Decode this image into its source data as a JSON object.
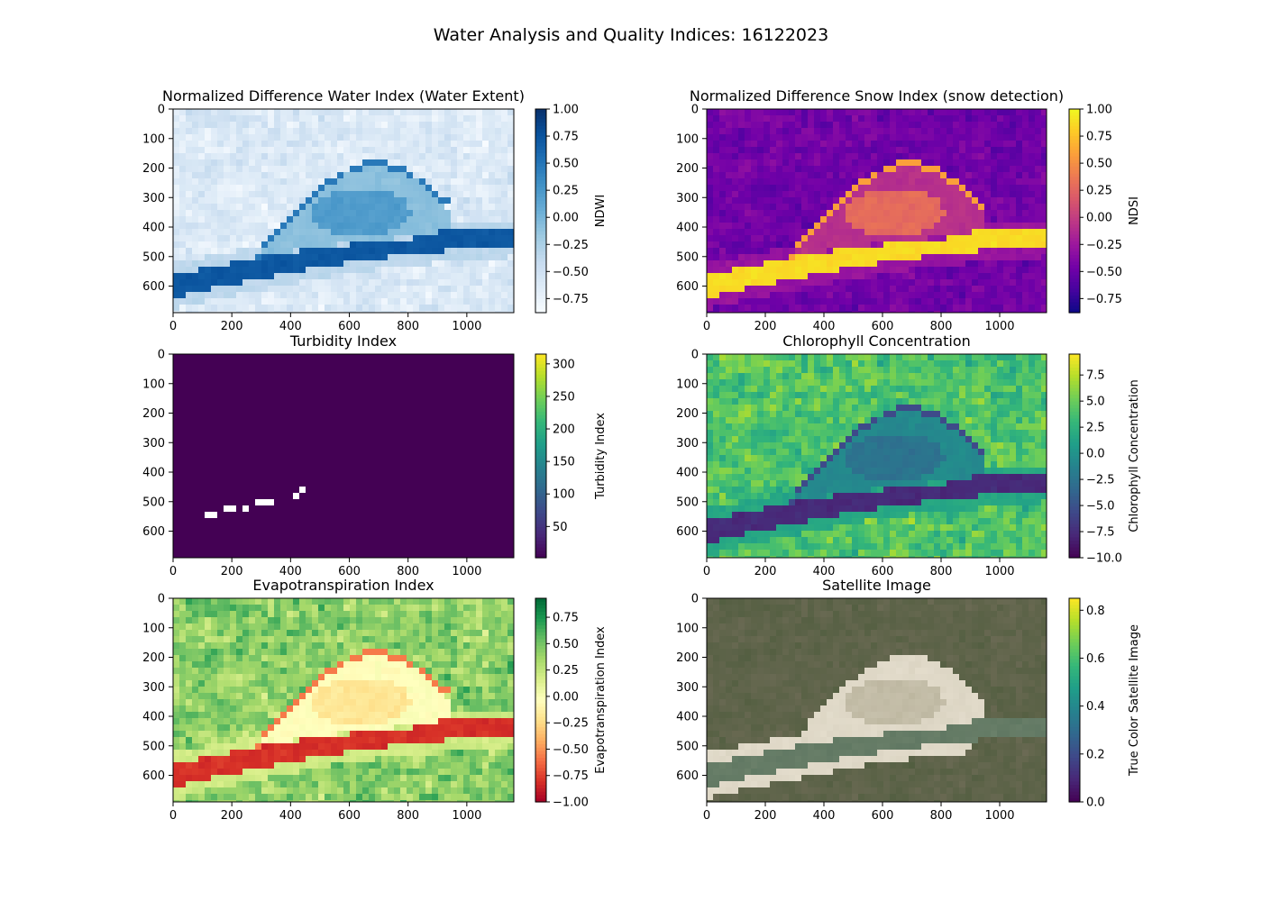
{
  "figure": {
    "title": "Water Analysis and Quality Indices: 16122023"
  },
  "chart_data": [
    {
      "type": "heatmap",
      "title": "Normalized Difference Water Index (Water Extent)",
      "image_extent": {
        "x": [
          0,
          1160
        ],
        "y": [
          690,
          0
        ]
      },
      "x_ticks": [
        0,
        200,
        400,
        600,
        800,
        1000
      ],
      "y_ticks": [
        0,
        100,
        200,
        300,
        400,
        500,
        600
      ],
      "colormap": "Blues",
      "colormap_stops": [
        "#f7fbff",
        "#deebf7",
        "#c6dbef",
        "#9ecae1",
        "#6baed6",
        "#4292c6",
        "#2171b5",
        "#08519c",
        "#08306b"
      ],
      "colorbar": {
        "label": "NDWI",
        "range": [
          -0.88,
          1.0
        ],
        "ticks": [
          "1.00",
          "0.75",
          "0.50",
          "0.25",
          "0.00",
          "−0.25",
          "−0.50",
          "−0.75"
        ]
      },
      "scene": {
        "background": 0.14,
        "field_noise": 0.18,
        "sandbar": 0.42,
        "channel": 0.85,
        "oxbow": 0.58
      }
    },
    {
      "type": "heatmap",
      "title": "Normalized Difference Snow Index (snow detection)",
      "image_extent": {
        "x": [
          0,
          1160
        ],
        "y": [
          690,
          0
        ]
      },
      "x_ticks": [
        0,
        200,
        400,
        600,
        800,
        1000
      ],
      "y_ticks": [
        0,
        100,
        200,
        300,
        400,
        500,
        600
      ],
      "colormap": "plasma",
      "colormap_stops": [
        "#0d0887",
        "#46039f",
        "#7201a8",
        "#9c179e",
        "#bd3786",
        "#d8576b",
        "#ed7953",
        "#fb9f3a",
        "#fdca26",
        "#f0f921"
      ],
      "colorbar": {
        "label": "NDSI",
        "range": [
          -0.88,
          1.0
        ],
        "ticks": [
          "1.00",
          "0.75",
          "0.50",
          "0.25",
          "0.00",
          "−0.25",
          "−0.50",
          "−0.75"
        ]
      },
      "scene": {
        "background": 0.22,
        "field_noise": 0.12,
        "sandbar": 0.42,
        "channel": 0.93,
        "oxbow": 0.62
      }
    },
    {
      "type": "heatmap",
      "title": "Turbidity Index",
      "image_extent": {
        "x": [
          0,
          1160
        ],
        "y": [
          690,
          0
        ]
      },
      "x_ticks": [
        0,
        200,
        400,
        600,
        800,
        1000
      ],
      "y_ticks": [
        0,
        100,
        200,
        300,
        400,
        500,
        600
      ],
      "colormap": "viridis",
      "colormap_stops": [
        "#440154",
        "#482878",
        "#3e4989",
        "#31688e",
        "#26828e",
        "#1f9e89",
        "#35b779",
        "#6ece58",
        "#b5de2b",
        "#fde725"
      ],
      "colorbar": {
        "label": "Turbidity Index",
        "range": [
          2,
          315
        ],
        "ticks": [
          "300",
          "250",
          "200",
          "150",
          "100",
          "50"
        ]
      },
      "scene": {
        "background": 0.0,
        "field_noise": 0.0,
        "sandbar": 0.0,
        "channel": 0.0,
        "oxbow": 0.0,
        "blank_patches": true
      }
    },
    {
      "type": "heatmap",
      "title": "Chlorophyll Concentration",
      "image_extent": {
        "x": [
          0,
          1160
        ],
        "y": [
          690,
          0
        ]
      },
      "x_ticks": [
        0,
        200,
        400,
        600,
        800,
        1000
      ],
      "y_ticks": [
        0,
        100,
        200,
        300,
        400,
        500,
        600
      ],
      "colormap": "viridis",
      "colormap_stops": [
        "#440154",
        "#482878",
        "#3e4989",
        "#31688e",
        "#26828e",
        "#1f9e89",
        "#35b779",
        "#6ece58",
        "#b5de2b",
        "#fde725"
      ],
      "colorbar": {
        "label": "Chlorophyll Concentration",
        "range": [
          -10.0,
          9.5
        ],
        "ticks": [
          "7.5",
          "5.0",
          "2.5",
          "0.0",
          "−2.5",
          "−5.0",
          "−7.5",
          "−10.0"
        ]
      },
      "scene": {
        "background": 0.72,
        "field_noise": 0.22,
        "sandbar": 0.47,
        "channel": 0.12,
        "oxbow": 0.38
      }
    },
    {
      "type": "heatmap",
      "title": "Evapotranspiration Index",
      "image_extent": {
        "x": [
          0,
          1160
        ],
        "y": [
          690,
          0
        ]
      },
      "x_ticks": [
        0,
        200,
        400,
        600,
        800,
        1000
      ],
      "y_ticks": [
        0,
        100,
        200,
        300,
        400,
        500,
        600
      ],
      "colormap": "RdYlGn",
      "colormap_stops": [
        "#a50026",
        "#d73027",
        "#f46d43",
        "#fdae61",
        "#fee08b",
        "#ffffbf",
        "#d9ef8b",
        "#a6d96a",
        "#66bd63",
        "#1a9850",
        "#006837"
      ],
      "colorbar": {
        "label": "Evapotranspiration Index",
        "range": [
          -1.0,
          0.93
        ],
        "ticks": [
          "0.75",
          "0.50",
          "0.25",
          "0.00",
          "−0.25",
          "−0.50",
          "−0.75",
          "−1.00"
        ]
      },
      "scene": {
        "background": 0.74,
        "field_noise": 0.2,
        "sandbar": 0.5,
        "channel": 0.1,
        "oxbow": 0.42
      }
    },
    {
      "type": "heatmap",
      "title": "Satellite Image",
      "image_extent": {
        "x": [
          0,
          1160
        ],
        "y": [
          690,
          0
        ]
      },
      "x_ticks": [
        0,
        200,
        400,
        600,
        800,
        1000
      ],
      "y_ticks": [
        0,
        100,
        200,
        300,
        400,
        500,
        600
      ],
      "colormap": "true-color",
      "colormap_stops": [
        "#5c5a49",
        "#6e6b55",
        "#7a7760",
        "#4d5f3e",
        "#5f7045",
        "#8b8670",
        "#d9d2c0",
        "#ece6d8"
      ],
      "palette": {
        "field": "#6f6c57",
        "field_dark": "#4e5c3d",
        "sand": "#e6dfcf",
        "water": "#5d7560",
        "water_light": "#7d8f77",
        "oxbow": "#b9b39c"
      },
      "colorbar": {
        "label": "True Color Satellite Image",
        "range": [
          0.0,
          0.85
        ],
        "colormap_stops": [
          "#440154",
          "#482878",
          "#3e4989",
          "#31688e",
          "#26828e",
          "#1f9e89",
          "#35b779",
          "#6ece58",
          "#b5de2b",
          "#fde725"
        ],
        "ticks": [
          "0.8",
          "0.6",
          "0.4",
          "0.2",
          "0.0"
        ]
      },
      "scene": {
        "background": 0.5,
        "field_noise": 0.2,
        "sandbar": 0.9,
        "channel": 0.2,
        "oxbow": 0.5,
        "true_color": true
      }
    }
  ]
}
